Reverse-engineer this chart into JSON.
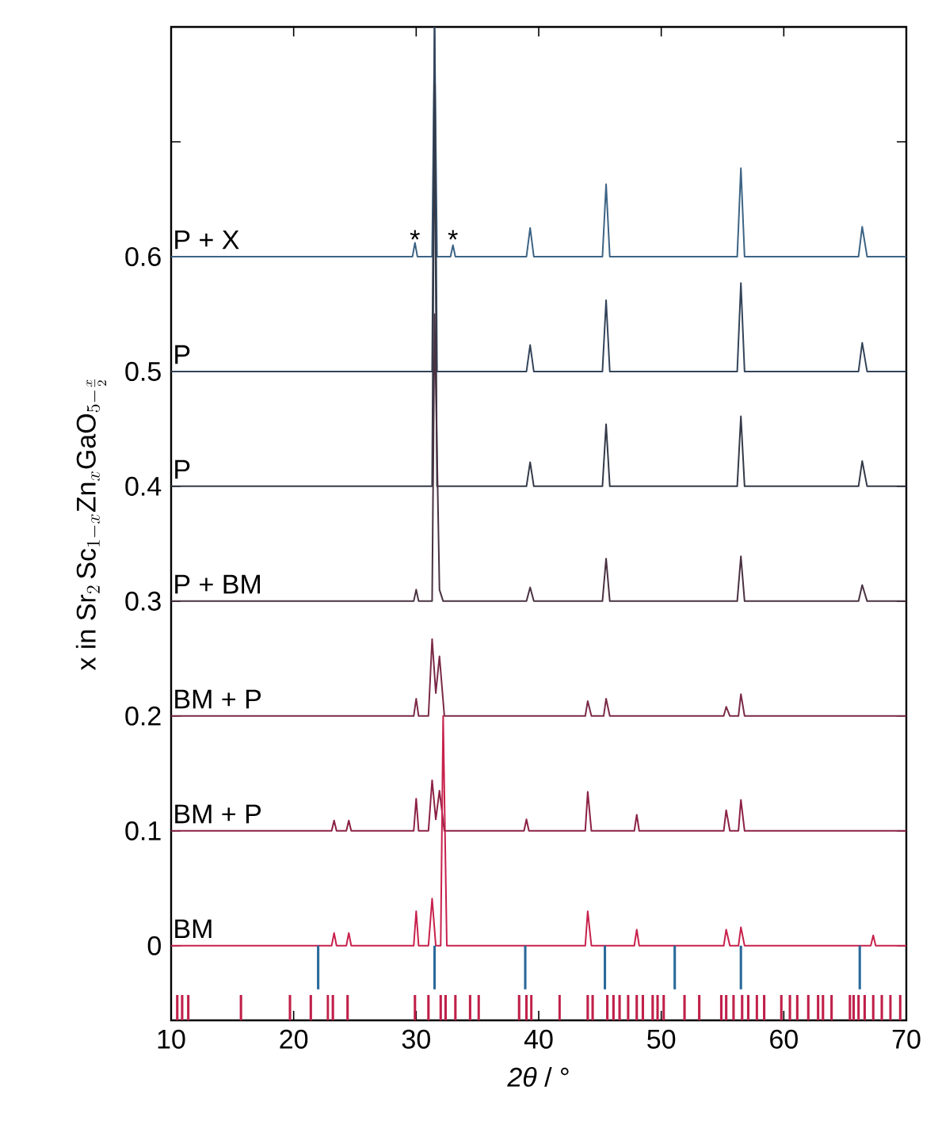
{
  "chart_data": {
    "type": "line",
    "xlabel": "*2θ* / °",
    "ylabel": "\\mathrm{x\\ in\\ Sr}_{2}\\,\\mathrm{Sc}_{1-x}\\mathrm{Zn}_{x}\\mathrm{GaO}_{5-\\frac{x}{2}}",
    "xlim": [
      10,
      70
    ],
    "ylim": [
      -0.065,
      0.8
    ],
    "xticks": [
      10,
      20,
      30,
      40,
      50,
      60,
      70
    ],
    "yticks": [
      0,
      0.1,
      0.2,
      0.3,
      0.4,
      0.5,
      0.6,
      {
        "value": 0.7,
        "label": null
      }
    ],
    "annotations": [
      {
        "text": "*",
        "x": 29.9,
        "y": 0.615
      },
      {
        "text": "*",
        "x": 33.0,
        "y": 0.615
      }
    ],
    "series": [
      {
        "name": "P + X",
        "color": "#3d6485",
        "x": [
          10,
          29.7,
          29.9,
          30.1,
          31.3,
          31.5,
          31.7,
          32.8,
          33.0,
          33.2,
          39.0,
          39.3,
          39.6,
          45.2,
          45.5,
          45.8,
          56.2,
          56.5,
          56.8,
          66.1,
          66.4,
          66.8,
          70
        ],
        "values": [
          0.6,
          0.6,
          0.612,
          0.6,
          0.6,
          0.8,
          0.6,
          0.6,
          0.61,
          0.6,
          0.6,
          0.625,
          0.6,
          0.6,
          0.663,
          0.6,
          0.6,
          0.677,
          0.6,
          0.6,
          0.626,
          0.6,
          0.6
        ]
      },
      {
        "name": "P",
        "color": "#34445a",
        "x": [
          10,
          31.3,
          31.5,
          31.7,
          39.0,
          39.3,
          39.6,
          45.2,
          45.5,
          45.8,
          56.2,
          56.5,
          56.8,
          66.1,
          66.4,
          66.8,
          70
        ],
        "values": [
          0.5,
          0.5,
          0.8,
          0.5,
          0.5,
          0.523,
          0.5,
          0.5,
          0.562,
          0.5,
          0.5,
          0.577,
          0.5,
          0.5,
          0.525,
          0.5,
          0.5
        ]
      },
      {
        "name": "P",
        "color": "#343a48",
        "x": [
          10,
          31.3,
          31.5,
          31.7,
          39.0,
          39.3,
          39.6,
          45.2,
          45.5,
          45.8,
          56.2,
          56.5,
          56.8,
          66.1,
          66.4,
          66.8,
          70
        ],
        "values": [
          0.4,
          0.4,
          0.75,
          0.4,
          0.4,
          0.421,
          0.4,
          0.4,
          0.454,
          0.4,
          0.4,
          0.461,
          0.4,
          0.4,
          0.422,
          0.4,
          0.4
        ]
      },
      {
        "name": "P + BM",
        "color": "#4a3242",
        "x": [
          10,
          29.8,
          30.0,
          30.2,
          31.3,
          31.5,
          31.9,
          32.2,
          39.0,
          39.3,
          39.6,
          45.2,
          45.5,
          45.8,
          56.2,
          56.5,
          56.8,
          66.1,
          66.4,
          66.8,
          70
        ],
        "values": [
          0.3,
          0.3,
          0.31,
          0.3,
          0.3,
          0.55,
          0.31,
          0.3,
          0.3,
          0.312,
          0.3,
          0.3,
          0.337,
          0.3,
          0.3,
          0.339,
          0.3,
          0.3,
          0.314,
          0.3,
          0.3
        ]
      },
      {
        "name": "BM + P",
        "color": "#7a2a48",
        "x": [
          10,
          29.8,
          30.0,
          30.2,
          31.0,
          31.3,
          31.6,
          31.9,
          32.3,
          43.8,
          44.0,
          44.3,
          45.3,
          45.5,
          45.8,
          55.1,
          55.3,
          55.6,
          56.3,
          56.5,
          56.8,
          70
        ],
        "values": [
          0.2,
          0.2,
          0.215,
          0.2,
          0.2,
          0.267,
          0.22,
          0.252,
          0.2,
          0.2,
          0.213,
          0.2,
          0.2,
          0.215,
          0.2,
          0.2,
          0.208,
          0.2,
          0.2,
          0.219,
          0.2,
          0.2
        ]
      },
      {
        "name": "BM + P",
        "color": "#8c2244",
        "x": [
          10,
          23.1,
          23.3,
          23.5,
          24.3,
          24.5,
          24.7,
          29.8,
          30.0,
          30.2,
          31.0,
          31.3,
          31.6,
          31.9,
          32.3,
          38.8,
          39.0,
          39.2,
          43.8,
          44.0,
          44.3,
          47.8,
          48.0,
          48.2,
          55.1,
          55.3,
          55.6,
          56.3,
          56.5,
          56.8,
          70
        ],
        "values": [
          0.1,
          0.1,
          0.109,
          0.1,
          0.1,
          0.109,
          0.1,
          0.1,
          0.128,
          0.1,
          0.1,
          0.144,
          0.11,
          0.135,
          0.1,
          0.1,
          0.11,
          0.1,
          0.1,
          0.134,
          0.1,
          0.1,
          0.114,
          0.1,
          0.1,
          0.118,
          0.1,
          0.1,
          0.127,
          0.1,
          0.1
        ]
      },
      {
        "name": "BM",
        "color": "#c8214c",
        "x": [
          10,
          23.1,
          23.3,
          23.5,
          24.3,
          24.5,
          24.7,
          29.8,
          30.0,
          30.2,
          31.0,
          31.3,
          31.6,
          32.0,
          32.2,
          32.5,
          43.8,
          44.0,
          44.3,
          47.8,
          48.0,
          48.2,
          55.1,
          55.3,
          55.6,
          56.3,
          56.5,
          56.8,
          67.1,
          67.3,
          67.5,
          70
        ],
        "values": [
          0,
          0,
          0.011,
          0,
          0,
          0.011,
          0,
          0,
          0.03,
          0,
          0,
          0.041,
          0,
          0,
          0.2,
          0,
          0,
          0.03,
          0,
          0,
          0.014,
          0,
          0,
          0.014,
          0,
          0,
          0.016,
          0,
          0,
          0.009,
          0,
          0
        ]
      },
      {
        "type": "bar",
        "color": "#2a6a9a",
        "base": [
          -0.038,
          -0.038,
          -0.038,
          -0.038,
          -0.038,
          -0.038,
          -0.038
        ],
        "x": [
          22.0,
          31.5,
          38.9,
          45.4,
          51.1,
          56.5,
          66.2
        ],
        "values": [
          0.038,
          0.038,
          0.038,
          0.038,
          0.038,
          0.038,
          0.038
        ]
      },
      {
        "type": "bar",
        "color": "#c0204a",
        "base": [
          -0.065,
          -0.065,
          -0.065,
          -0.065,
          -0.065,
          -0.065,
          -0.065,
          -0.065,
          -0.065,
          -0.065,
          -0.065,
          -0.065,
          -0.065,
          -0.065,
          -0.065,
          -0.065,
          -0.065,
          -0.065,
          -0.065,
          -0.065,
          -0.065,
          -0.065,
          -0.065,
          -0.065,
          -0.065,
          -0.065,
          -0.065,
          -0.065,
          -0.065,
          -0.065,
          -0.065,
          -0.065,
          -0.065,
          -0.065,
          -0.065,
          -0.065,
          -0.065,
          -0.065,
          -0.065,
          -0.065,
          -0.065,
          -0.065,
          -0.065,
          -0.065,
          -0.065,
          -0.065,
          -0.065,
          -0.065,
          -0.065,
          -0.065,
          -0.065,
          -0.065,
          -0.065,
          -0.065,
          -0.065
        ],
        "x": [
          10.5,
          10.9,
          11.4,
          15.7,
          19.7,
          21.4,
          22.8,
          23.2,
          24.4,
          29.9,
          31.0,
          32.0,
          32.4,
          33.2,
          34.4,
          35.1,
          38.4,
          39.0,
          39.4,
          41.7,
          44.0,
          44.4,
          45.6,
          46.1,
          46.6,
          47.3,
          48.0,
          48.5,
          49.3,
          49.7,
          50.2,
          51.9,
          53.1,
          54.9,
          55.3,
          55.9,
          56.6,
          57.1,
          57.8,
          58.4,
          59.8,
          60.5,
          61.1,
          62.0,
          62.8,
          63.2,
          63.9,
          65.4,
          65.7,
          66.1,
          66.6,
          67.3,
          68.0,
          68.7,
          69.5
        ],
        "values": [
          0.022,
          0.022,
          0.022,
          0.022,
          0.022,
          0.022,
          0.022,
          0.022,
          0.022,
          0.022,
          0.022,
          0.022,
          0.022,
          0.022,
          0.022,
          0.022,
          0.022,
          0.022,
          0.022,
          0.022,
          0.022,
          0.022,
          0.022,
          0.022,
          0.022,
          0.022,
          0.022,
          0.022,
          0.022,
          0.022,
          0.022,
          0.022,
          0.022,
          0.022,
          0.022,
          0.022,
          0.022,
          0.022,
          0.022,
          0.022,
          0.022,
          0.022,
          0.022,
          0.022,
          0.022,
          0.022,
          0.022,
          0.022,
          0.022,
          0.022,
          0.022,
          0.022,
          0.022,
          0.022,
          0.022
        ]
      }
    ]
  }
}
